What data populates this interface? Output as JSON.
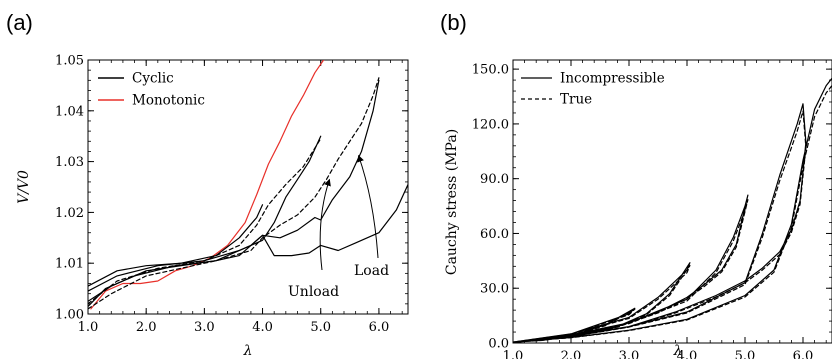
{
  "figure": {
    "panel_a_label": "(a)",
    "panel_b_label": "(b)"
  },
  "chart_data": [
    {
      "type": "line",
      "panel": "(a)",
      "xlabel": "λ",
      "ylabel": "V/V0",
      "xlim": [
        1.0,
        6.5
      ],
      "ylim": [
        1.0,
        1.05
      ],
      "x_ticks": [
        "1.0",
        "2.0",
        "3.0",
        "4.0",
        "5.0",
        "6.0"
      ],
      "y_ticks": [
        "1.00",
        "1.01",
        "1.02",
        "1.03",
        "1.04",
        "1.05"
      ],
      "grid": false,
      "legend_position": "top-left",
      "legend": [
        "Cyclic",
        "Monotonic"
      ],
      "annotations": [
        {
          "text": "Unload",
          "arrow_to": [
            5.15,
            1.0265
          ]
        },
        {
          "text": "Load",
          "arrow_to": [
            5.65,
            1.0312
          ]
        }
      ],
      "series": [
        {
          "name": "Monotonic",
          "color": "#e8302a",
          "style": "solid",
          "x": [
            1.05,
            1.3,
            1.6,
            1.9,
            2.2,
            2.5,
            2.8,
            3.1,
            3.4,
            3.7,
            3.9,
            4.1,
            4.3,
            4.5,
            4.7,
            4.9,
            5.05
          ],
          "y": [
            1.001,
            1.0045,
            1.006,
            1.006,
            1.0065,
            1.0085,
            1.0095,
            1.011,
            1.0135,
            1.018,
            1.0235,
            1.0295,
            1.034,
            1.039,
            1.043,
            1.0475,
            1.05
          ]
        },
        {
          "name": "Cyclic",
          "color": "#000000",
          "style": "solid",
          "x": [
            1.0,
            1.3,
            1.8,
            2.5,
            3.2,
            3.6,
            3.8,
            4.0,
            4.2,
            4.5,
            4.8,
            5.0,
            5.3,
            5.6,
            6.0,
            6.3,
            6.5
          ],
          "y": [
            1.0015,
            1.005,
            1.0075,
            1.0095,
            1.0105,
            1.0115,
            1.0135,
            1.0155,
            1.0115,
            1.0115,
            1.012,
            1.0135,
            1.0125,
            1.014,
            1.016,
            1.0205,
            1.0255
          ]
        },
        {
          "name": "",
          "color": "#000000",
          "style": "solid",
          "x": [
            1.0,
            1.4,
            2.0,
            2.6,
            3.2,
            3.8,
            4.0,
            4.3,
            4.6,
            4.9,
            5.0,
            5.2,
            5.5,
            5.7,
            5.9,
            6.0
          ],
          "y": [
            1.0025,
            1.0055,
            1.0085,
            1.0095,
            1.0105,
            1.0135,
            1.0155,
            1.015,
            1.0165,
            1.019,
            1.0185,
            1.0225,
            1.027,
            1.032,
            1.04,
            1.046
          ]
        },
        {
          "name": "",
          "color": "#000000",
          "style": "dashed",
          "x": [
            1.0,
            1.4,
            2.0,
            2.6,
            3.2,
            3.8,
            4.0,
            4.3,
            4.6,
            4.9,
            5.1,
            5.3,
            5.5,
            5.7,
            5.9,
            6.0
          ],
          "y": [
            1.001,
            1.004,
            1.0075,
            1.009,
            1.0105,
            1.0125,
            1.015,
            1.0175,
            1.0195,
            1.023,
            1.0265,
            1.0305,
            1.034,
            1.0375,
            1.043,
            1.0465
          ]
        },
        {
          "name": "",
          "color": "#000000",
          "style": "solid",
          "x": [
            1.0,
            1.5,
            2.2,
            3.0,
            3.6,
            4.0,
            4.2,
            4.4,
            4.6,
            4.8,
            5.0
          ],
          "y": [
            1.0045,
            1.0075,
            1.0095,
            1.0105,
            1.0125,
            1.0145,
            1.018,
            1.023,
            1.0265,
            1.03,
            1.035
          ]
        },
        {
          "name": "",
          "color": "#000000",
          "style": "dashed",
          "x": [
            1.0,
            1.5,
            2.2,
            3.0,
            3.6,
            3.9,
            4.1,
            4.4,
            4.7,
            5.0
          ],
          "y": [
            1.002,
            1.0065,
            1.009,
            1.0105,
            1.0135,
            1.0175,
            1.0215,
            1.0255,
            1.029,
            1.0345
          ]
        },
        {
          "name": "",
          "color": "#000000",
          "style": "solid",
          "x": [
            1.0,
            1.5,
            2.0,
            2.6,
            3.2,
            3.6,
            3.9,
            4.0
          ],
          "y": [
            1.0055,
            1.0085,
            1.0095,
            1.01,
            1.0115,
            1.015,
            1.019,
            1.0215
          ]
        }
      ]
    },
    {
      "type": "line",
      "panel": "(b)",
      "xlabel": "λ",
      "ylabel": "Cauchy stress (MPa)",
      "xlim": [
        1.0,
        6.5
      ],
      "ylim": [
        0.0,
        155.0
      ],
      "x_ticks": [
        "1.0",
        "2.0",
        "3.0",
        "4.0",
        "5.0",
        "6.0"
      ],
      "y_ticks": [
        "0.0",
        "30.0",
        "60.0",
        "90.0",
        "120.0",
        "150.0"
      ],
      "grid": false,
      "legend_position": "top-left",
      "legend": [
        "Incompressible",
        "True"
      ],
      "series": [
        {
          "name": "Incompressible",
          "color": "#000000",
          "style": "solid",
          "x": [
            1.0,
            2.0,
            3.0,
            3.1,
            2.6,
            2.0,
            1.5,
            1.0,
            2.0,
            3.0,
            3.5,
            4.0,
            4.05,
            3.7,
            3.3,
            2.8,
            2.2,
            1.5,
            1.0,
            2.0,
            3.0,
            4.0,
            4.5,
            4.8,
            5.0,
            5.05,
            4.85,
            4.6,
            4.3,
            4.0,
            3.5,
            2.8,
            2.0,
            1.0,
            2.0,
            3.0,
            4.0,
            5.0,
            5.3,
            5.6,
            5.9,
            6.0,
            6.05,
            5.95,
            5.8,
            5.6,
            5.3,
            5.0,
            4.5,
            3.8,
            3.0,
            2.0,
            1.0,
            2.0,
            3.0,
            4.0,
            5.0,
            5.5,
            5.8,
            6.0,
            6.2,
            6.4,
            6.5
          ],
          "y": [
            0.0,
            5.0,
            16.0,
            19.0,
            10.0,
            4.0,
            1.5,
            0.5,
            5.0,
            14.0,
            25.0,
            40.0,
            44.0,
            27.0,
            16.0,
            9.0,
            4.5,
            1.5,
            0.5,
            4.5,
            11.0,
            24.0,
            40.0,
            58.0,
            75.0,
            81.0,
            54.0,
            40.0,
            32.0,
            25.0,
            17.0,
            9.0,
            4.0,
            0.5,
            4.0,
            9.0,
            17.0,
            33.0,
            60.0,
            92.0,
            120.0,
            131.0,
            110.0,
            78.0,
            62.0,
            50.0,
            41.0,
            34.0,
            26.0,
            17.0,
            9.0,
            3.5,
            0.5,
            3.0,
            7.0,
            13.0,
            26.0,
            40.0,
            65.0,
            100.0,
            128.0,
            141.0,
            145.0
          ]
        },
        {
          "name": "True",
          "color": "#000000",
          "style": "dashed",
          "x": [
            1.0,
            2.0,
            3.0,
            3.1,
            2.6,
            2.0,
            1.5,
            1.0,
            2.0,
            3.0,
            3.5,
            4.0,
            4.05,
            3.7,
            3.3,
            2.8,
            2.2,
            1.5,
            1.0,
            2.0,
            3.0,
            4.0,
            4.5,
            4.8,
            5.0,
            5.05,
            4.85,
            4.6,
            4.3,
            4.0,
            3.5,
            2.8,
            2.0,
            1.0,
            2.0,
            3.0,
            4.0,
            5.0,
            5.3,
            5.6,
            5.9,
            6.0,
            6.05,
            5.95,
            5.8,
            5.6,
            5.3,
            5.0,
            4.5,
            3.8,
            3.0,
            2.0,
            1.0,
            2.0,
            3.0,
            4.0,
            5.0,
            5.5,
            5.8,
            6.0,
            6.2,
            6.4,
            6.5
          ],
          "y": [
            0.0,
            4.8,
            15.5,
            18.5,
            9.6,
            3.8,
            1.4,
            0.5,
            4.8,
            13.5,
            24.0,
            38.5,
            42.5,
            26.0,
            15.5,
            8.7,
            4.3,
            1.4,
            0.5,
            4.3,
            10.6,
            23.0,
            38.5,
            56.0,
            72.5,
            78.5,
            52.5,
            39.0,
            31.0,
            24.2,
            16.5,
            8.7,
            3.9,
            0.5,
            3.9,
            8.7,
            16.5,
            32.0,
            58.0,
            89.0,
            116.0,
            127.0,
            107.0,
            76.0,
            60.5,
            48.5,
            40.0,
            33.0,
            25.2,
            16.5,
            8.7,
            3.4,
            0.5,
            2.9,
            6.8,
            12.6,
            25.2,
            38.8,
            63.0,
            97.0,
            124.0,
            137.0,
            141.0
          ]
        }
      ]
    }
  ]
}
